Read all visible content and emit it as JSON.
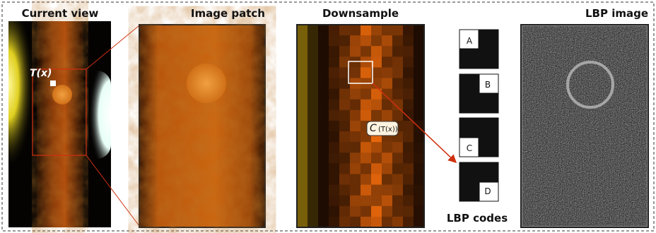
{
  "panels": {
    "current_view": {
      "title": "Current view",
      "annotation": "T(x)"
    },
    "image_patch": {
      "title": "Image patch"
    },
    "downsample": {
      "title": "Downsample",
      "annotation": {
        "symbol": "C",
        "argument": "(T(x))"
      }
    },
    "lbp_codes": {
      "title": "LBP codes",
      "codes": [
        "A",
        "B",
        "C",
        "D"
      ]
    },
    "lbp_image": {
      "title": "LBP image"
    }
  }
}
